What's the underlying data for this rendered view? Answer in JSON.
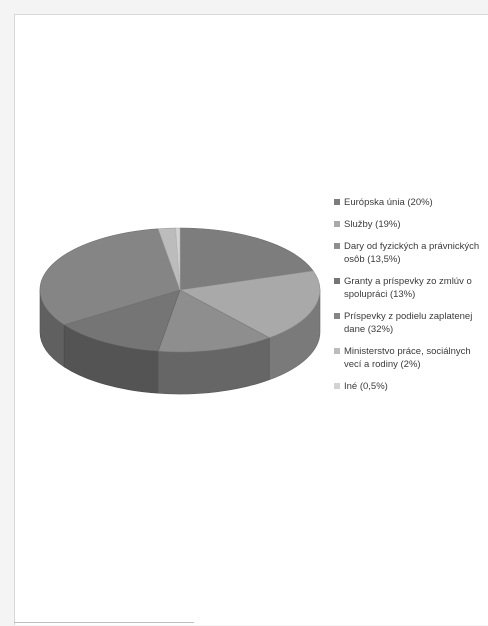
{
  "chart_data": {
    "type": "pie",
    "three_d": true,
    "legend_position": "right",
    "slices": [
      {
        "label": "Európska únia (20%)",
        "value": 20,
        "color": "#7d7d7d"
      },
      {
        "label": "Služby (19%)",
        "value": 19,
        "color": "#a9a9a9"
      },
      {
        "label": "Dary od fyzických a právnických\nosôb (13,5%)",
        "value": 13.5,
        "color": "#8e8e8e"
      },
      {
        "label": "Granty a príspevky zo zmlúv o\nspolupráci (13%)",
        "value": 13,
        "color": "#757575"
      },
      {
        "label": "Príspevky z podielu zaplatenej\ndane (32%)",
        "value": 32,
        "color": "#858585"
      },
      {
        "label": "Ministerstvo práce, sociálnych\nvecí a rodiny (2%)",
        "value": 2,
        "color": "#bcbcbc"
      },
      {
        "label": "Iné (0,5%)",
        "value": 0.5,
        "color": "#d2d2d2"
      }
    ]
  }
}
